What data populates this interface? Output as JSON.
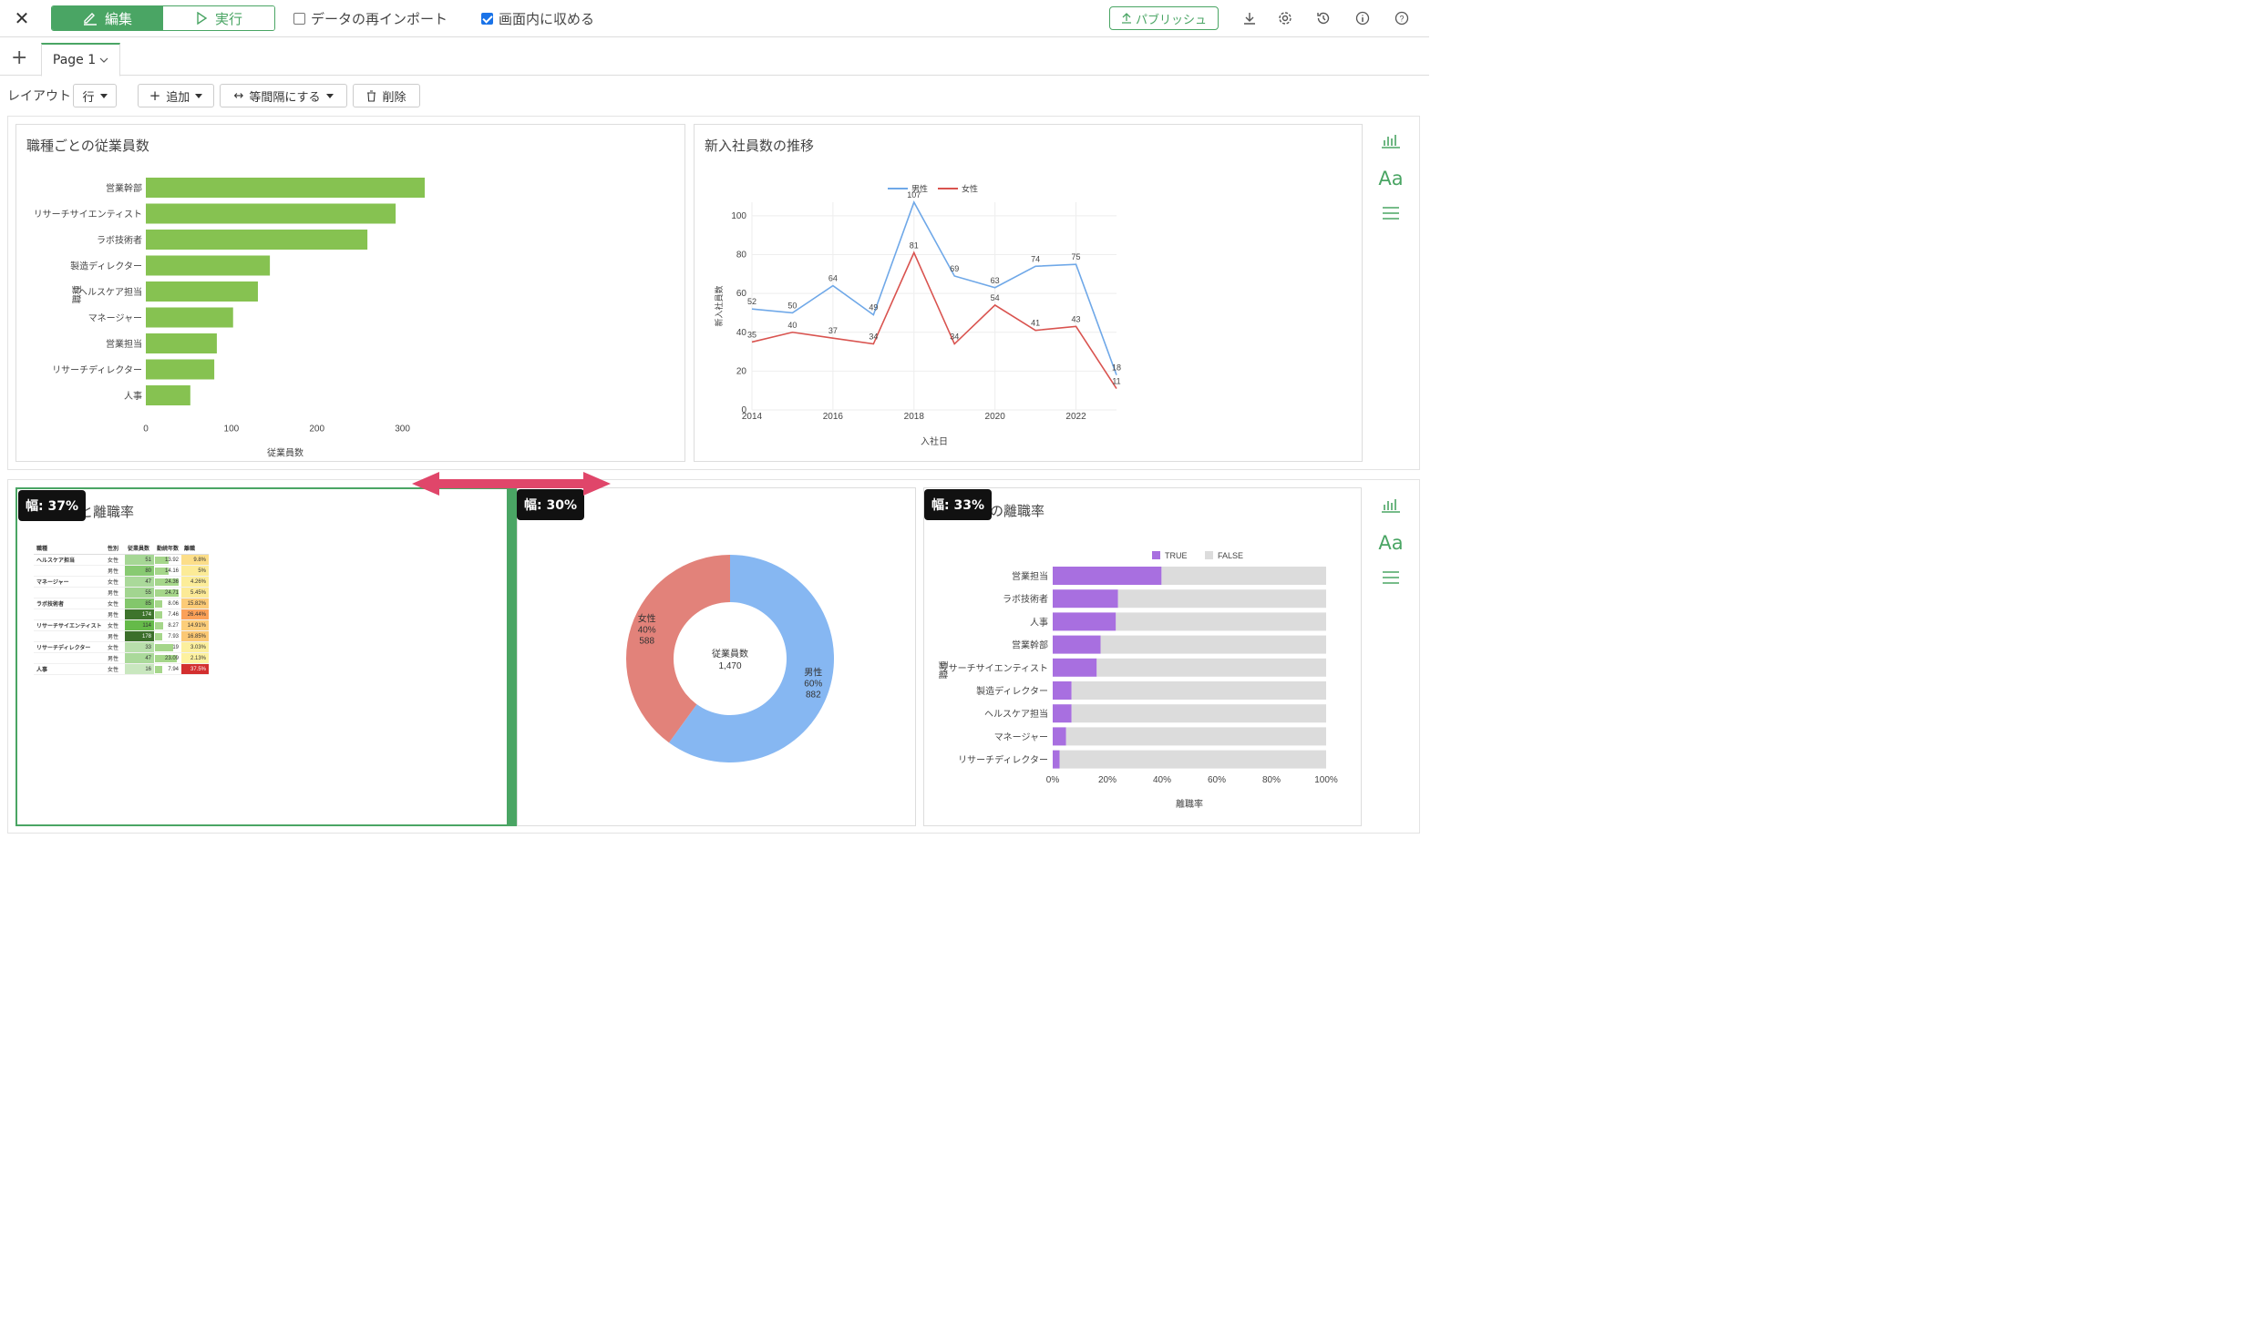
{
  "toolbar": {
    "close_icon": "close-icon",
    "edit_label": "編集",
    "run_label": "実行",
    "reimport_label": "データの再インポート",
    "reimport_checked": false,
    "fit_label": "画面内に収める",
    "fit_checked": true,
    "publish_label": "パブリッシュ",
    "icons": [
      "download-icon",
      "gear-icon",
      "history-icon",
      "info-icon",
      "help-icon"
    ]
  },
  "tabs": {
    "add_icon": "plus-icon",
    "page_label": "Page 1"
  },
  "layout_bar": {
    "label": "レイアウト",
    "row_label": "行",
    "add_label": "追加",
    "equal_label": "等間隔にする",
    "delete_label": "削除"
  },
  "charts": {
    "job_count": {
      "title": "職種ごとの従業員数",
      "chart_data": {
        "type": "bar",
        "orientation": "horizontal",
        "categories": [
          "営業幹部",
          "リサーチサイエンティスト",
          "ラボ技術者",
          "製造ディレクター",
          "ヘルスケア担当",
          "マネージャー",
          "営業担当",
          "リサーチディレクター",
          "人事"
        ],
        "values": [
          326,
          292,
          259,
          145,
          131,
          102,
          83,
          80,
          52
        ],
        "xlabel": "従業員数",
        "ylabel": "職種",
        "xlim": [
          0,
          326
        ],
        "xticks": [
          0,
          100,
          200,
          300
        ],
        "color": "#86c251",
        "grid": false
      }
    },
    "hires": {
      "title": "新入社員数の推移",
      "chart_data": {
        "type": "line",
        "x": [
          2014,
          2015,
          2016,
          2017,
          2018,
          2019,
          2020,
          2021,
          2022,
          2023
        ],
        "series": [
          {
            "name": "男性",
            "color": "#6fa8e8",
            "values": [
              52,
              50,
              64,
              49,
              107,
              69,
              63,
              74,
              75,
              18
            ]
          },
          {
            "name": "女性",
            "color": "#d9534f",
            "values": [
              35,
              40,
              37,
              34,
              81,
              34,
              54,
              41,
              43,
              11
            ]
          }
        ],
        "xlabel": "入社日",
        "ylabel": "新入社員数",
        "ylim": [
          0,
          107
        ],
        "yticks": [
          0,
          20,
          40,
          60,
          80,
          100
        ],
        "xticks": [
          2014,
          2016,
          2018,
          2020,
          2022
        ],
        "legend": "top-center",
        "grid": true
      }
    },
    "table": {
      "title": "と離職率",
      "width_badge": "幅: 37%",
      "chart_data": {
        "type": "table",
        "columns": [
          "職種",
          "性別",
          "従業員数",
          "勤続年数",
          "離職"
        ],
        "rows": [
          {
            "job": "ヘルスケア担当",
            "gender": "女性",
            "count": 51,
            "tenure": "13.92",
            "rate": "9.8%"
          },
          {
            "job": "",
            "gender": "男性",
            "count": 80,
            "tenure": "14.16",
            "rate": "5%"
          },
          {
            "job": "マネージャー",
            "gender": "女性",
            "count": 47,
            "tenure": "24.36",
            "rate": "4.26%"
          },
          {
            "job": "",
            "gender": "男性",
            "count": 55,
            "tenure": "24.71",
            "rate": "5.45%"
          },
          {
            "job": "ラボ技術者",
            "gender": "女性",
            "count": 85,
            "tenure": "8.06",
            "rate": "15.82%"
          },
          {
            "job": "",
            "gender": "男性",
            "count": 174,
            "tenure": "7.46",
            "rate": "26.44%"
          },
          {
            "job": "リサーチサイエンティスト",
            "gender": "女性",
            "count": 114,
            "tenure": "8.27",
            "rate": "14.91%"
          },
          {
            "job": "",
            "gender": "男性",
            "count": 178,
            "tenure": "7.93",
            "rate": "16.85%"
          },
          {
            "job": "リサーチディレクター",
            "gender": "女性",
            "count": 33,
            "tenure": "19",
            "rate": "3.03%"
          },
          {
            "job": "",
            "gender": "男性",
            "count": 47,
            "tenure": "23.09",
            "rate": "2.13%"
          },
          {
            "job": "人事",
            "gender": "女性",
            "count": 16,
            "tenure": "7.94",
            "rate": "37.5%"
          }
        ]
      }
    },
    "donut": {
      "width_badge": "幅: 30%",
      "title": "",
      "chart_data": {
        "type": "pie",
        "donut": true,
        "center_label": "従業員数",
        "center_value": "1,470",
        "slices": [
          {
            "name": "男性",
            "pct": "60%",
            "value": 882,
            "color": "#86b7f2"
          },
          {
            "name": "女性",
            "pct": "40%",
            "value": 588,
            "color": "#e2827a"
          }
        ]
      }
    },
    "attrition": {
      "width_badge": "幅: 33%",
      "title": "の離職率",
      "chart_data": {
        "type": "bar",
        "orientation": "horizontal",
        "stacked": "percent",
        "categories": [
          "営業担当",
          "ラボ技術者",
          "人事",
          "営業幹部",
          "リサーチサイエンティスト",
          "製造ディレクター",
          "ヘルスケア担当",
          "マネージャー",
          "リサーチディレクター"
        ],
        "series": [
          {
            "name": "TRUE",
            "color": "#a86fe0",
            "values": [
              0.398,
              0.239,
              0.231,
              0.175,
              0.161,
              0.069,
              0.069,
              0.049,
              0.025
            ]
          },
          {
            "name": "FALSE",
            "color": "#dcdcdc",
            "values": [
              0.602,
              0.761,
              0.769,
              0.825,
              0.839,
              0.931,
              0.931,
              0.951,
              0.975
            ]
          }
        ],
        "xlabel": "離職率",
        "ylabel": "職種",
        "xlim": [
          0,
          1
        ],
        "xticks": [
          "0%",
          "20%",
          "40%",
          "60%",
          "80%",
          "100%"
        ],
        "legend": "top-center"
      }
    }
  },
  "side_tools": {
    "icons": [
      "bar-chart-icon",
      "text-icon",
      "menu-icon"
    ],
    "text_label": "Aa"
  }
}
